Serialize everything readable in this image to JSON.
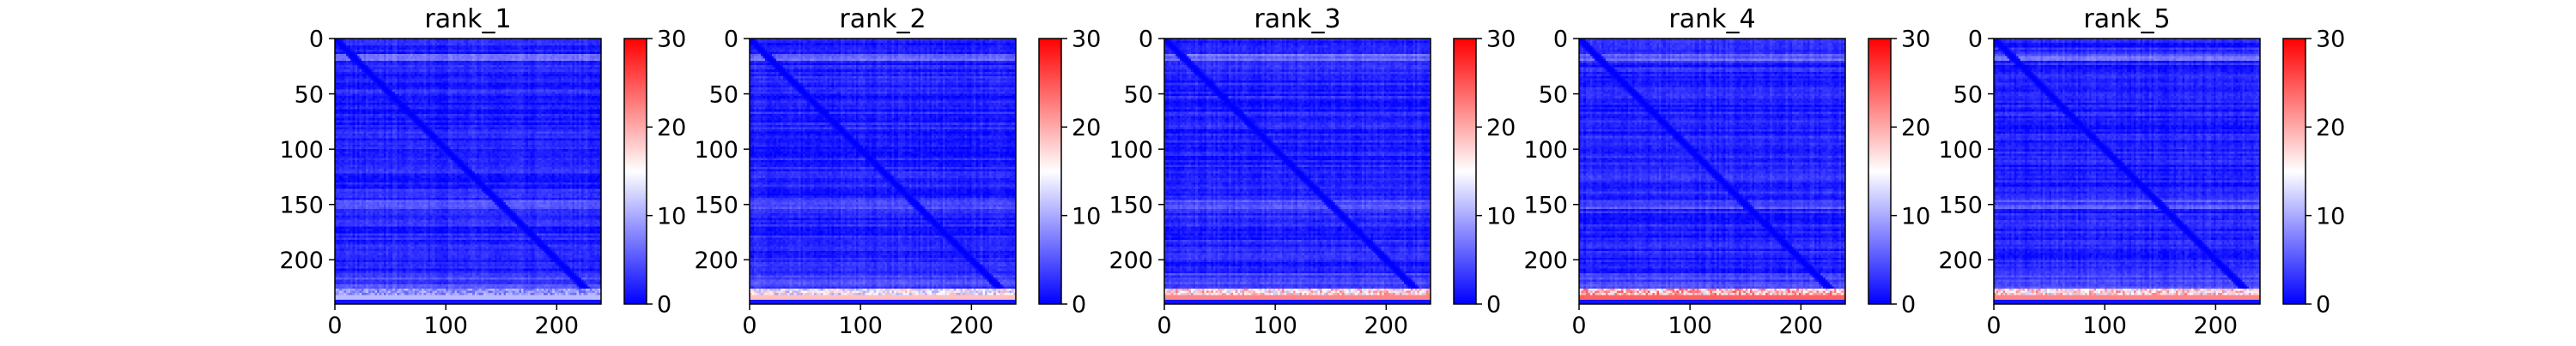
{
  "figure": {
    "colormap": "bwr",
    "colors": {
      "low": "#0000ff",
      "mid": "#ffffff",
      "high": "#ff0000",
      "axes": "#000000"
    }
  },
  "chart_data": [
    {
      "type": "heatmap",
      "title": "rank_1",
      "size": 240,
      "x_ticks": [
        0,
        100,
        200
      ],
      "y_ticks": [
        0,
        50,
        100,
        150,
        200
      ],
      "xlim": [
        0,
        240
      ],
      "ylim": [
        240,
        0
      ],
      "colorbar": {
        "range": [
          0,
          30
        ],
        "ticks": [
          0,
          10,
          20,
          30
        ]
      },
      "values_summary": {
        "background": 2,
        "diagonal": 0,
        "bottom_band_rows": [
          225,
          236
        ],
        "bottom_band_level": 10
      }
    },
    {
      "type": "heatmap",
      "title": "rank_2",
      "size": 240,
      "x_ticks": [
        0,
        100,
        200
      ],
      "y_ticks": [
        0,
        50,
        100,
        150,
        200
      ],
      "xlim": [
        0,
        240
      ],
      "ylim": [
        240,
        0
      ],
      "colorbar": {
        "range": [
          0,
          30
        ],
        "ticks": [
          0,
          10,
          20,
          30
        ]
      },
      "values_summary": {
        "background": 2,
        "diagonal": 0,
        "bottom_band_rows": [
          225,
          236
        ],
        "bottom_band_level": 17
      }
    },
    {
      "type": "heatmap",
      "title": "rank_3",
      "size": 240,
      "x_ticks": [
        0,
        100,
        200
      ],
      "y_ticks": [
        0,
        50,
        100,
        150,
        200
      ],
      "xlim": [
        0,
        240
      ],
      "ylim": [
        240,
        0
      ],
      "colorbar": {
        "range": [
          0,
          30
        ],
        "ticks": [
          0,
          10,
          20,
          30
        ]
      },
      "values_summary": {
        "background": 2,
        "diagonal": 0,
        "bottom_band_rows": [
          225,
          236
        ],
        "bottom_band_level": 20
      }
    },
    {
      "type": "heatmap",
      "title": "rank_4",
      "size": 240,
      "x_ticks": [
        0,
        100,
        200
      ],
      "y_ticks": [
        0,
        50,
        100,
        150,
        200
      ],
      "xlim": [
        0,
        240
      ],
      "ylim": [
        240,
        0
      ],
      "colorbar": {
        "range": [
          0,
          30
        ],
        "ticks": [
          0,
          10,
          20,
          30
        ]
      },
      "values_summary": {
        "background": 2,
        "diagonal": 0,
        "bottom_band_rows": [
          225,
          236
        ],
        "bottom_band_level": 22
      }
    },
    {
      "type": "heatmap",
      "title": "rank_5",
      "size": 240,
      "x_ticks": [
        0,
        100,
        200
      ],
      "y_ticks": [
        0,
        50,
        100,
        150,
        200
      ],
      "xlim": [
        0,
        240
      ],
      "ylim": [
        240,
        0
      ],
      "colorbar": {
        "range": [
          0,
          30
        ],
        "ticks": [
          0,
          10,
          20,
          30
        ]
      },
      "values_summary": {
        "background": 2,
        "diagonal": 0,
        "bottom_band_rows": [
          225,
          236
        ],
        "bottom_band_level": 20
      }
    }
  ]
}
